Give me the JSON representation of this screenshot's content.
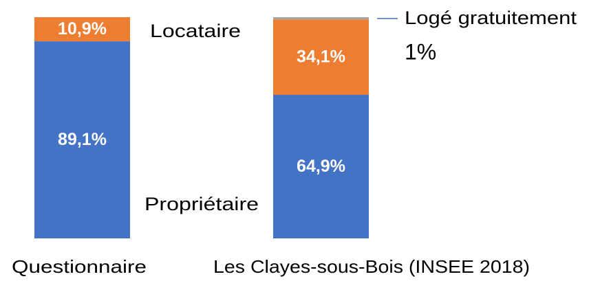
{
  "chart_data": {
    "type": "stacked_bar",
    "categories": [
      "Questionnaire",
      "Les Clayes-sous-Bois (INSEE 2018)"
    ],
    "series": [
      {
        "name": "Propriétaire",
        "color": "#4472c4",
        "values": [
          89.1,
          64.9
        ],
        "value_labels": [
          "89,1%",
          "64,9%"
        ]
      },
      {
        "name": "Locataire",
        "color": "#ed7d31",
        "values": [
          10.9,
          34.1
        ],
        "value_labels": [
          "10,9%",
          "34,1%"
        ]
      },
      {
        "name": "Logé gratuitement",
        "color": "#a5a5a5",
        "values": [
          null,
          1
        ],
        "value_labels": [
          null,
          "1%"
        ]
      }
    ],
    "ylim": [
      0,
      100
    ]
  }
}
